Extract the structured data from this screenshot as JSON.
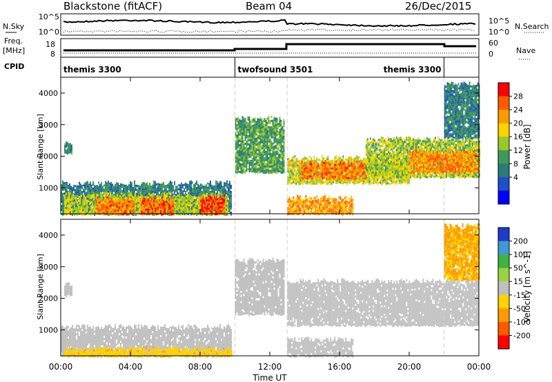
{
  "header": {
    "station": "Blackstone (fitACF)",
    "beam": "Beam 04",
    "date": "26/Dec/2015"
  },
  "left_labels": {
    "nsky": "N.Sky",
    "freq_line1": "Freq.",
    "freq_line2": "[MHz]",
    "cpid": "CPID"
  },
  "right_labels": {
    "nsearch": "N.Search",
    "nave": "Nave"
  },
  "noise_panel": {
    "left_ticks": [
      "10^5",
      "10^0"
    ],
    "right_ticks": [
      "10^5",
      "10^0"
    ]
  },
  "freq_panel": {
    "left_ticks": [
      "18",
      "8"
    ],
    "right_ticks": [
      "60",
      "0"
    ]
  },
  "cpid_segments": [
    {
      "label": "themis 3300",
      "start_h": 0,
      "end_h": 10
    },
    {
      "label": "twofsound 3501",
      "start_h": 10,
      "end_h": 22
    },
    {
      "label": "themis 3300",
      "start_h": 22,
      "end_h": 24
    }
  ],
  "power_colorbar": {
    "label": "Power [dB]",
    "ticks": [
      "28",
      "24",
      "20",
      "16",
      "12",
      "8",
      "4"
    ],
    "colors": [
      "#ff0000",
      "#ff5a00",
      "#ff9a00",
      "#ffd200",
      "#99c82a",
      "#3f9a5a",
      "#2d7a7a",
      "#1e4ec8",
      "#0000ff"
    ]
  },
  "velocity_colorbar": {
    "label": "Velocity [m s^-1]",
    "ticks": [
      "200",
      "100",
      "50",
      "15",
      "-15",
      "-50",
      "-100",
      "-200"
    ],
    "colors": [
      "#1e3cc8",
      "#3f9ad2",
      "#3fb23f",
      "#9ad23f",
      "#c0c0c0",
      "#ffd200",
      "#ff9a00",
      "#ff5a00",
      "#ff0000"
    ]
  },
  "x_axis": {
    "label": "Time UT",
    "ticks": [
      "00:00",
      "04:00",
      "08:00",
      "12:00",
      "16:00",
      "20:00",
      "00:00"
    ]
  },
  "y_axis": {
    "label": "Slant Range [km]",
    "ticks": [
      "1000",
      "2000",
      "3000",
      "4000"
    ]
  },
  "chart_data": [
    {
      "type": "heatmap",
      "title": "Blackstone (fitACF) Beam 04 26/Dec/2015",
      "xlabel": "Time UT",
      "ylabel": "Slant Range [km]",
      "quantity": "Power [dB]",
      "xlim_hours": [
        0,
        24
      ],
      "ylim_km": [
        180,
        4500
      ],
      "clim": [
        0,
        32
      ],
      "grid": false,
      "regions": [
        {
          "t0": 0.0,
          "t1": 9.8,
          "r0": 180,
          "r1": 1150,
          "level": 9
        },
        {
          "t0": 0.2,
          "t1": 9.6,
          "r0": 180,
          "r1": 800,
          "level": 17
        },
        {
          "t0": 2.0,
          "t1": 4.2,
          "r0": 180,
          "r1": 650,
          "level": 26
        },
        {
          "t0": 4.6,
          "t1": 6.5,
          "r0": 180,
          "r1": 650,
          "level": 28
        },
        {
          "t0": 8.0,
          "t1": 9.4,
          "r0": 180,
          "r1": 720,
          "level": 29
        },
        {
          "t0": 0.2,
          "t1": 0.6,
          "r0": 2100,
          "r1": 2450,
          "level": 10
        },
        {
          "t0": 10.0,
          "t1": 12.8,
          "r0": 1500,
          "r1": 3200,
          "level": 12
        },
        {
          "t0": 13.0,
          "t1": 16.8,
          "r0": 180,
          "r1": 700,
          "level": 24
        },
        {
          "t0": 13.0,
          "t1": 20.0,
          "r0": 1150,
          "r1": 1950,
          "level": 18
        },
        {
          "t0": 13.8,
          "t1": 17.5,
          "r0": 1300,
          "r1": 1800,
          "level": 26
        },
        {
          "t0": 17.5,
          "t1": 24.0,
          "r0": 1350,
          "r1": 2550,
          "level": 16
        },
        {
          "t0": 20.0,
          "t1": 24.0,
          "r0": 1500,
          "r1": 2150,
          "level": 25
        },
        {
          "t0": 22.0,
          "t1": 24.0,
          "r0": 2600,
          "r1": 4300,
          "level": 9
        }
      ]
    },
    {
      "type": "heatmap",
      "title": "",
      "xlabel": "Time UT",
      "ylabel": "Slant Range [km]",
      "quantity": "Velocity [m s^-1]",
      "xlim_hours": [
        0,
        24
      ],
      "ylim_km": [
        180,
        4500
      ],
      "clim": [
        -200,
        200
      ],
      "grid": false,
      "regions": [
        {
          "t0": 0.0,
          "t1": 9.8,
          "r0": 180,
          "r1": 1100,
          "level": 0
        },
        {
          "t0": 0.2,
          "t1": 9.8,
          "r0": 180,
          "r1": 420,
          "level": -60
        },
        {
          "t0": 0.2,
          "t1": 0.6,
          "r0": 2100,
          "r1": 2450,
          "level": 0
        },
        {
          "t0": 10.0,
          "t1": 12.8,
          "r0": 1500,
          "r1": 3200,
          "level": 0
        },
        {
          "t0": 13.0,
          "t1": 16.8,
          "r0": 180,
          "r1": 700,
          "level": 0
        },
        {
          "t0": 13.0,
          "t1": 24.0,
          "r0": 1150,
          "r1": 2550,
          "level": 0
        },
        {
          "t0": 22.0,
          "t1": 24.0,
          "r0": 2600,
          "r1": 4300,
          "level": -80
        }
      ]
    }
  ]
}
